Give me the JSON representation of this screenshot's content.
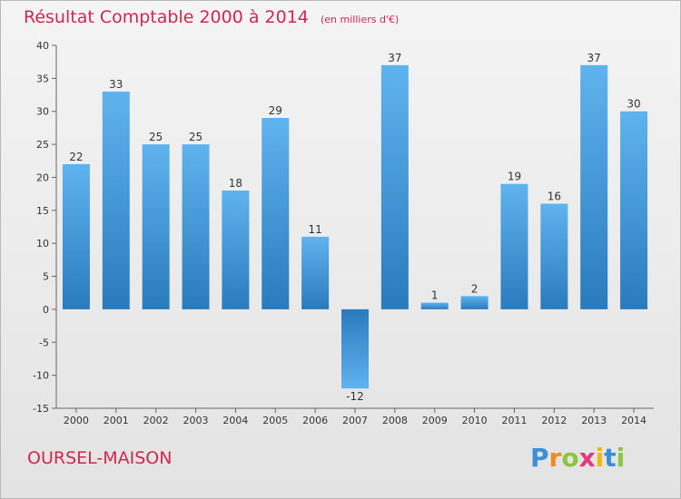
{
  "title": "Résultat Comptable 2000 à 2014",
  "subtitle": "(en milliers d'€)",
  "commune": "OURSEL-MAISON",
  "logo": {
    "letters": [
      "P",
      "r",
      "o",
      "x",
      "i",
      "t",
      "i"
    ],
    "colors": [
      "#3a8fd8",
      "#f08a1c",
      "#8cc63f",
      "#e23a7a",
      "#f5b800",
      "#3a8fd8",
      "#8cc63f"
    ]
  },
  "colors": {
    "bar_top": "#5fb3ee",
    "bar_bottom": "#2a7bbd",
    "title": "#d2264e"
  },
  "chart_data": {
    "type": "bar",
    "categories": [
      "2000",
      "2001",
      "2002",
      "2003",
      "2004",
      "2005",
      "2006",
      "2007",
      "2008",
      "2009",
      "2010",
      "2011",
      "2012",
      "2013",
      "2014"
    ],
    "values": [
      22,
      33,
      25,
      25,
      18,
      29,
      11,
      -12,
      37,
      1,
      2,
      19,
      16,
      37,
      30
    ],
    "ylim": [
      -15,
      40
    ],
    "yticks": [
      -15,
      -10,
      -5,
      0,
      5,
      10,
      15,
      20,
      25,
      30,
      35,
      40
    ],
    "grid": false,
    "xlabel": "",
    "ylabel": ""
  }
}
